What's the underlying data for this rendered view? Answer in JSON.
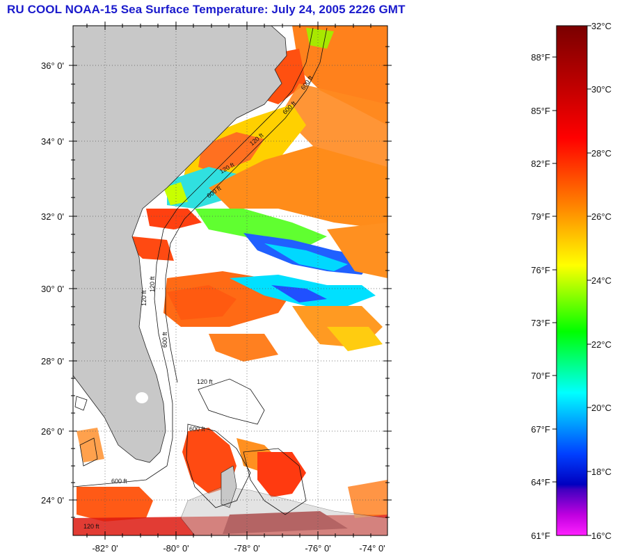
{
  "title": "RU COOL  NOAA-15  Sea Surface Temperature:  July 24, 2005 2226 GMT",
  "map": {
    "lat_labels": [
      "36° 0'",
      "34° 0'",
      "32° 0'",
      "30° 0'",
      "28° 0'",
      "26° 0'",
      "24° 0'"
    ],
    "lon_labels": [
      "-82° 0'",
      "-80° 0'",
      "-78° 0'",
      "-76° 0'",
      "-74° 0'"
    ],
    "contour_labels": [
      "120 ft",
      "600 ft",
      "120 ft",
      "600 ft",
      "600 ft",
      "120 ft",
      "120 ft",
      "600 ft",
      "120 ft",
      "600 ft",
      "120 ft",
      "600 ft"
    ],
    "land_color": "#c8c8c8",
    "cloud_color": "#ffffff"
  },
  "colorbar": {
    "fahrenheit_labels": [
      "88°F",
      "85°F",
      "82°F",
      "79°F",
      "76°F",
      "73°F",
      "70°F",
      "67°F",
      "64°F",
      "61°F"
    ],
    "celsius_labels": [
      "32°C",
      "30°C",
      "28°C",
      "26°C",
      "24°C",
      "22°C",
      "20°C",
      "18°C",
      "16°C"
    ],
    "gradient_stops": [
      "#7a0000",
      "#ff0000",
      "#ff8000",
      "#ffff00",
      "#00ff00",
      "#00ffff",
      "#0000ff",
      "#8000ff",
      "#ff00ff"
    ]
  }
}
